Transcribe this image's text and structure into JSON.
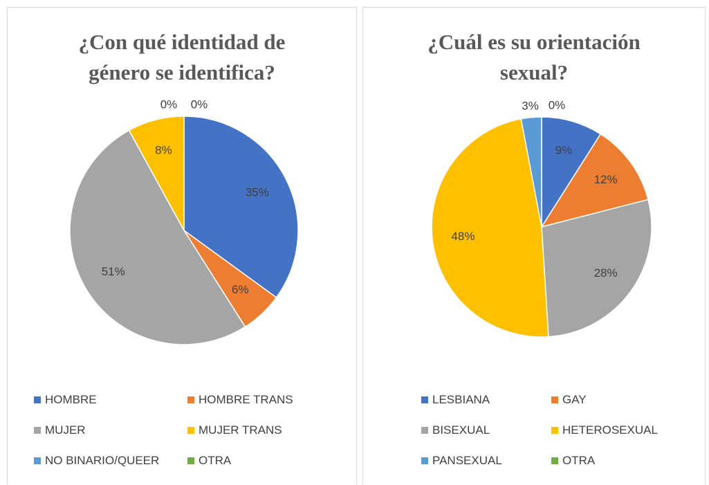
{
  "chart_data": [
    {
      "type": "pie",
      "title": "¿Con qué identidad de género se identifica?",
      "categories": [
        "HOMBRE",
        "HOMBRE TRANS",
        "MUJER",
        "MUJER TRANS",
        "NO BINARIO/QUEER",
        "OTRA"
      ],
      "values": [
        35,
        6,
        51,
        8,
        0,
        0
      ],
      "value_labels": [
        "35%",
        "6%",
        "51%",
        "8%",
        "0%",
        "0%"
      ],
      "colors": [
        "#4472c4",
        "#ed7d31",
        "#a5a5a5",
        "#ffc000",
        "#5b9bd5",
        "#70ad47"
      ]
    },
    {
      "type": "pie",
      "title": "¿Cuál es su orientación sexual?",
      "categories": [
        "LESBIANA",
        "GAY",
        "BISEXUAL",
        "HETEROSEXUAL",
        "PANSEXUAL",
        "OTRA"
      ],
      "values": [
        9,
        12,
        28,
        48,
        3,
        0
      ],
      "value_labels": [
        "9%",
        "12%",
        "28%",
        "48%",
        "3%",
        "0%"
      ],
      "colors": [
        "#4472c4",
        "#ed7d31",
        "#a5a5a5",
        "#ffc000",
        "#5b9bd5",
        "#70ad47"
      ]
    }
  ]
}
